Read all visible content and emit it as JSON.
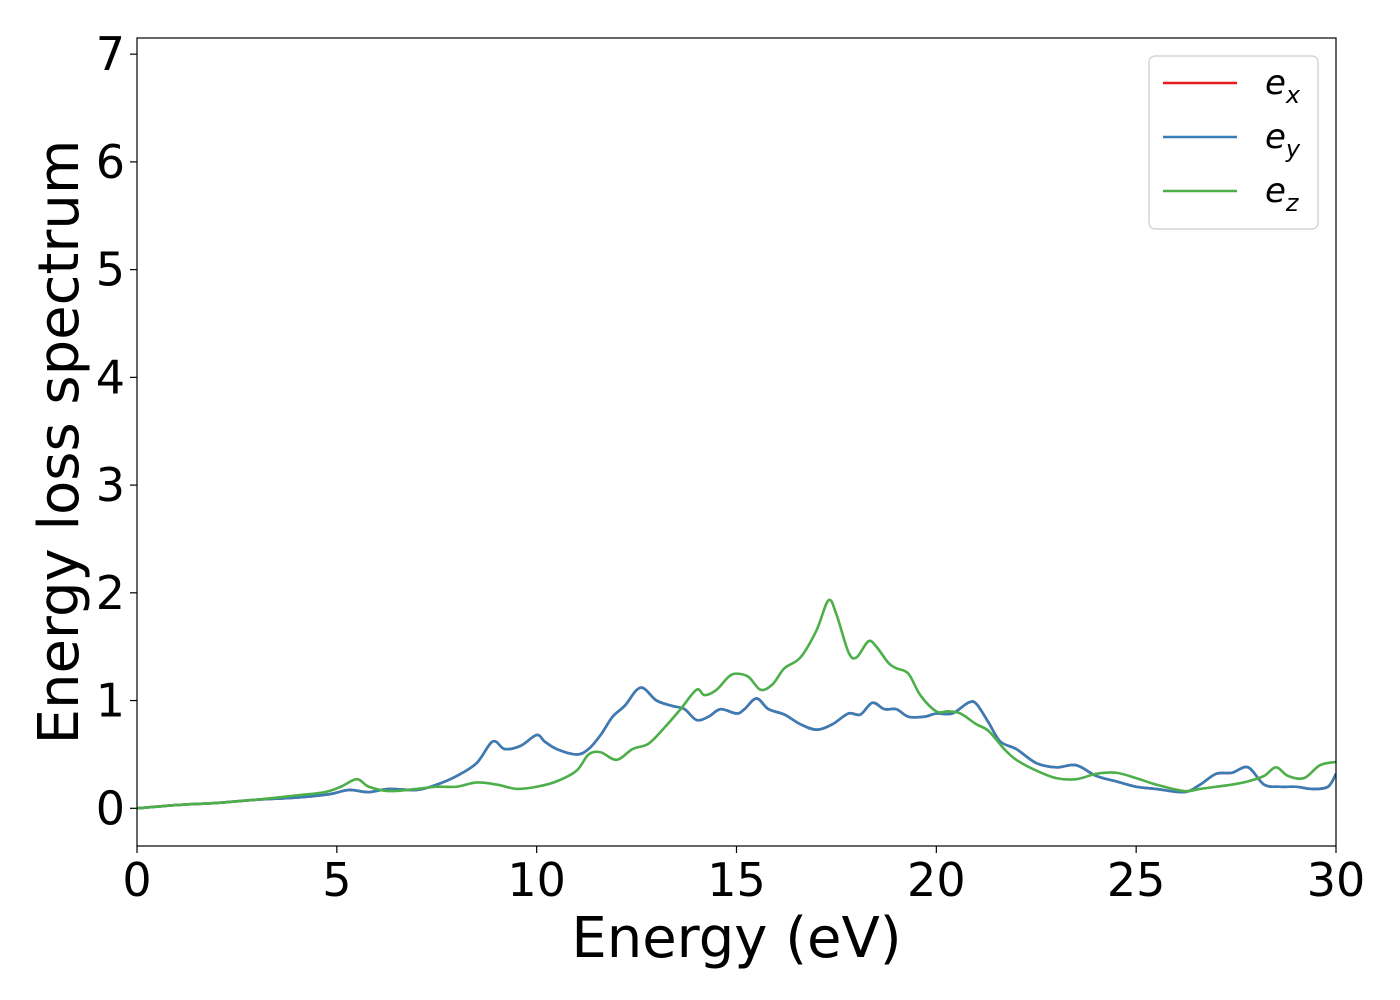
{
  "chart_data": {
    "type": "line",
    "xlabel": "Energy (eV)",
    "ylabel": "Energy loss spectrum",
    "xlim": [
      0,
      30
    ],
    "ylim": [
      -0.35,
      7.15
    ],
    "xticks": [
      "0",
      "5",
      "10",
      "15",
      "20",
      "25",
      "30"
    ],
    "yticks": [
      "0",
      "1",
      "2",
      "3",
      "4",
      "5",
      "6",
      "7"
    ],
    "grid": false,
    "legend_position": "top-right",
    "legend": [
      {
        "base": "e",
        "sub": "x",
        "color": "#e41a1c"
      },
      {
        "base": "e",
        "sub": "y",
        "color": "#377eb8"
      },
      {
        "base": "e",
        "sub": "z",
        "color": "#4daf4a"
      }
    ],
    "series": [
      {
        "name": "ex",
        "color": "#e41a1c",
        "x": [
          0,
          1,
          2,
          3,
          4,
          4.8,
          5.3,
          5.8,
          6.3,
          7,
          7.5,
          8,
          8.5,
          8.9,
          9.2,
          9.6,
          10,
          10.2,
          10.5,
          11,
          11.3,
          11.6,
          11.9,
          12.2,
          12.6,
          13,
          13.4,
          13.7,
          14,
          14.3,
          14.6,
          15,
          15.2,
          15.5,
          15.8,
          16.2,
          16.6,
          17,
          17.4,
          17.8,
          18.1,
          18.4,
          18.7,
          19,
          19.3,
          19.7,
          20,
          20.4,
          20.8,
          21,
          21.3,
          21.6,
          22,
          22.5,
          23,
          23.5,
          24,
          24.5,
          25,
          25.5,
          26.2,
          26.6,
          27,
          27.4,
          27.8,
          28.2,
          28.6,
          29,
          29.4,
          29.8,
          30
        ],
        "y": [
          0,
          0.03,
          0.05,
          0.08,
          0.1,
          0.13,
          0.17,
          0.15,
          0.18,
          0.17,
          0.22,
          0.3,
          0.42,
          0.62,
          0.55,
          0.58,
          0.68,
          0.62,
          0.55,
          0.5,
          0.55,
          0.68,
          0.85,
          0.95,
          1.12,
          1.0,
          0.95,
          0.92,
          0.82,
          0.85,
          0.92,
          0.88,
          0.92,
          1.02,
          0.92,
          0.87,
          0.78,
          0.73,
          0.78,
          0.88,
          0.87,
          0.98,
          0.92,
          0.92,
          0.85,
          0.85,
          0.88,
          0.88,
          0.98,
          0.97,
          0.8,
          0.62,
          0.55,
          0.42,
          0.38,
          0.4,
          0.3,
          0.25,
          0.2,
          0.18,
          0.15,
          0.22,
          0.32,
          0.33,
          0.38,
          0.22,
          0.2,
          0.2,
          0.18,
          0.2,
          0.32
        ]
      },
      {
        "name": "ey",
        "color": "#377eb8",
        "x": [
          0,
          1,
          2,
          3,
          4,
          4.8,
          5.3,
          5.8,
          6.3,
          7,
          7.5,
          8,
          8.5,
          8.9,
          9.2,
          9.6,
          10,
          10.2,
          10.5,
          11,
          11.3,
          11.6,
          11.9,
          12.2,
          12.6,
          13,
          13.4,
          13.7,
          14,
          14.3,
          14.6,
          15,
          15.2,
          15.5,
          15.8,
          16.2,
          16.6,
          17,
          17.4,
          17.8,
          18.1,
          18.4,
          18.7,
          19,
          19.3,
          19.7,
          20,
          20.4,
          20.8,
          21,
          21.3,
          21.6,
          22,
          22.5,
          23,
          23.5,
          24,
          24.5,
          25,
          25.5,
          26.2,
          26.6,
          27,
          27.4,
          27.8,
          28.2,
          28.6,
          29,
          29.4,
          29.8,
          30
        ],
        "y": [
          0,
          0.03,
          0.05,
          0.08,
          0.1,
          0.13,
          0.17,
          0.15,
          0.18,
          0.17,
          0.22,
          0.3,
          0.42,
          0.62,
          0.55,
          0.58,
          0.68,
          0.62,
          0.55,
          0.5,
          0.55,
          0.68,
          0.85,
          0.95,
          1.12,
          1.0,
          0.95,
          0.92,
          0.82,
          0.85,
          0.92,
          0.88,
          0.92,
          1.02,
          0.92,
          0.87,
          0.78,
          0.73,
          0.78,
          0.88,
          0.87,
          0.98,
          0.92,
          0.92,
          0.85,
          0.85,
          0.88,
          0.88,
          0.98,
          0.97,
          0.8,
          0.62,
          0.55,
          0.42,
          0.38,
          0.4,
          0.3,
          0.25,
          0.2,
          0.18,
          0.15,
          0.22,
          0.32,
          0.33,
          0.38,
          0.22,
          0.2,
          0.2,
          0.18,
          0.2,
          0.32
        ]
      },
      {
        "name": "ez",
        "color": "#4daf4a",
        "x": [
          0,
          1,
          2,
          3,
          4,
          4.7,
          5.1,
          5.5,
          5.8,
          6.3,
          7,
          7.5,
          8,
          8.5,
          9,
          9.5,
          10,
          10.5,
          11,
          11.3,
          11.6,
          12,
          12.4,
          12.8,
          13.2,
          13.6,
          14,
          14.2,
          14.5,
          14.8,
          15,
          15.3,
          15.6,
          15.9,
          16.2,
          16.6,
          17,
          17.3,
          17.5,
          17.8,
          18,
          18.3,
          18.5,
          18.8,
          19,
          19.3,
          19.6,
          20,
          20.3,
          20.6,
          21,
          21.3,
          21.7,
          22,
          22.5,
          23,
          23.5,
          24,
          24.5,
          25,
          25.5,
          26.2,
          26.6,
          27,
          27.4,
          27.8,
          28.2,
          28.5,
          28.8,
          29.2,
          29.6,
          30
        ],
        "y": [
          0,
          0.03,
          0.05,
          0.08,
          0.12,
          0.15,
          0.2,
          0.27,
          0.2,
          0.16,
          0.18,
          0.2,
          0.2,
          0.24,
          0.22,
          0.18,
          0.2,
          0.25,
          0.35,
          0.5,
          0.52,
          0.45,
          0.55,
          0.6,
          0.75,
          0.92,
          1.1,
          1.05,
          1.1,
          1.22,
          1.25,
          1.22,
          1.1,
          1.15,
          1.3,
          1.4,
          1.65,
          1.93,
          1.8,
          1.45,
          1.4,
          1.55,
          1.5,
          1.35,
          1.3,
          1.25,
          1.05,
          0.9,
          0.9,
          0.88,
          0.78,
          0.72,
          0.55,
          0.45,
          0.35,
          0.28,
          0.27,
          0.32,
          0.33,
          0.28,
          0.22,
          0.16,
          0.18,
          0.2,
          0.22,
          0.25,
          0.3,
          0.38,
          0.3,
          0.28,
          0.4,
          0.43
        ]
      }
    ]
  }
}
